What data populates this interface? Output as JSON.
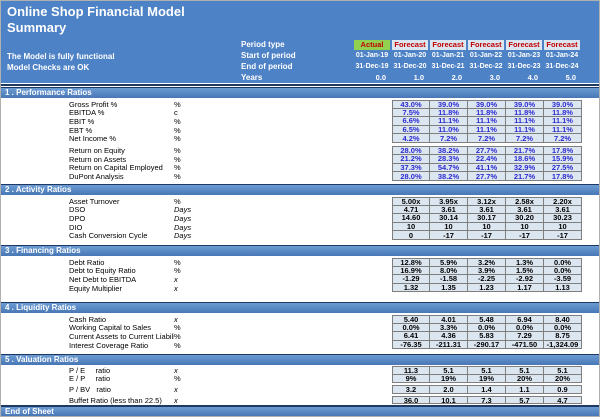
{
  "header": {
    "title": "Online Shop Financial Model",
    "subtitle": "Summary",
    "status_line1": "The Model is fully functional",
    "status_line2": "Model Checks are OK",
    "period_labels": {
      "type": "Period type",
      "start": "Start of period",
      "end": "End of period",
      "years": "Years"
    },
    "columns": [
      {
        "type": "Actual",
        "is_actual": true,
        "start": "01-Jan-19",
        "end": "31-Dec-19",
        "years": "0.0"
      },
      {
        "type": "Forecast",
        "is_actual": false,
        "start": "01-Jan-20",
        "end": "31-Dec-20",
        "years": "1.0"
      },
      {
        "type": "Forecast",
        "is_actual": false,
        "start": "01-Jan-21",
        "end": "31-Dec-21",
        "years": "2.0"
      },
      {
        "type": "Forecast",
        "is_actual": false,
        "start": "01-Jan-22",
        "end": "31-Dec-22",
        "years": "3.0"
      },
      {
        "type": "Forecast",
        "is_actual": false,
        "start": "01-Jan-23",
        "end": "31-Dec-23",
        "years": "4.0"
      },
      {
        "type": "Forecast",
        "is_actual": false,
        "start": "01-Jan-24",
        "end": "31-Dec-24",
        "years": "5.0"
      }
    ]
  },
  "sections": [
    {
      "title": "1 . Performance Ratios",
      "blue": true,
      "groups": [
        {
          "rows": [
            {
              "label": "Gross Profit %",
              "unit": "%",
              "italic": false,
              "values": [
                "43.0%",
                "39.0%",
                "39.0%",
                "39.0%",
                "39.0%"
              ]
            },
            {
              "label": "EBITDA %",
              "unit": "c",
              "italic": false,
              "values": [
                "7.5%",
                "11.8%",
                "11.8%",
                "11.8%",
                "11.8%"
              ]
            },
            {
              "label": "EBIT %",
              "unit": "%",
              "italic": false,
              "values": [
                "6.6%",
                "11.1%",
                "11.1%",
                "11.1%",
                "11.1%"
              ]
            },
            {
              "label": "EBT %",
              "unit": "%",
              "italic": false,
              "values": [
                "6.5%",
                "11.0%",
                "11.1%",
                "11.1%",
                "11.1%"
              ]
            },
            {
              "label": "Net Income %",
              "unit": "%",
              "italic": false,
              "values": [
                "4.2%",
                "7.2%",
                "7.2%",
                "7.2%",
                "7.2%"
              ]
            }
          ]
        },
        {
          "rows": [
            {
              "label": "Return on Equity",
              "unit": "%",
              "italic": false,
              "values": [
                "28.0%",
                "38.2%",
                "27.7%",
                "21.7%",
                "17.8%"
              ]
            },
            {
              "label": "Return on Assets",
              "unit": "%",
              "italic": false,
              "values": [
                "21.2%",
                "28.3%",
                "22.4%",
                "18.6%",
                "15.9%"
              ]
            },
            {
              "label": "Return on Capital Employed",
              "unit": "%",
              "italic": false,
              "values": [
                "37.3%",
                "54.7%",
                "41.1%",
                "32.9%",
                "27.5%"
              ]
            },
            {
              "label": "DuPont Analysis",
              "unit": "%",
              "italic": false,
              "values": [
                "28.0%",
                "38.2%",
                "27.7%",
                "21.7%",
                "17.8%"
              ]
            }
          ]
        }
      ]
    },
    {
      "title": "2 . Activity Ratios",
      "blue": false,
      "groups": [
        {
          "rows": [
            {
              "label": "Asset Turnover",
              "unit": "%",
              "italic": false,
              "values": [
                "5.00x",
                "3.95x",
                "3.12x",
                "2.58x",
                "2.20x"
              ]
            },
            {
              "label": "DSO",
              "unit": "Days",
              "italic": true,
              "values": [
                "4.71",
                "3.61",
                "3.61",
                "3.61",
                "3.61"
              ]
            },
            {
              "label": "DPO",
              "unit": "Days",
              "italic": true,
              "values": [
                "14.60",
                "30.14",
                "30.17",
                "30.20",
                "30.23"
              ]
            },
            {
              "label": "DIO",
              "unit": "Days",
              "italic": true,
              "values": [
                "10",
                "10",
                "10",
                "10",
                "10"
              ]
            },
            {
              "label": "Cash Conversion Cycle",
              "unit": "Days",
              "italic": true,
              "values": [
                "0",
                "-17",
                "-17",
                "-17",
                "-17"
              ]
            }
          ]
        }
      ]
    },
    {
      "title": "3 . Financing Ratios",
      "blue": false,
      "groups": [
        {
          "rows": [
            {
              "label": "Debt Ratio",
              "unit": "%",
              "italic": false,
              "values": [
                "12.8%",
                "5.9%",
                "3.2%",
                "1.3%",
                "0.0%"
              ]
            },
            {
              "label": "Debt to Equity Ratio",
              "unit": "%",
              "italic": false,
              "values": [
                "16.9%",
                "8.0%",
                "3.9%",
                "1.5%",
                "0.0%"
              ]
            },
            {
              "label": "Net Debt to EBITDA",
              "unit": "x",
              "italic": true,
              "values": [
                "-1.29",
                "-1.58",
                "-2.25",
                "-2.92",
                "-3.59"
              ]
            },
            {
              "label": "Equity Multiplier",
              "unit": "x",
              "italic": true,
              "values": [
                "1.32",
                "1.35",
                "1.23",
                "1.17",
                "1.13"
              ]
            }
          ]
        }
      ]
    },
    {
      "title": "4 . Liquidity Ratios",
      "blue": false,
      "groups": [
        {
          "rows": [
            {
              "label": "Cash Ratio",
              "unit": "x",
              "italic": true,
              "values": [
                "5.40",
                "4.01",
                "5.48",
                "6.94",
                "8.40"
              ]
            },
            {
              "label": "Working Capital to Sales",
              "unit": "%",
              "italic": false,
              "values": [
                "0.0%",
                "3.3%",
                "0.0%",
                "0.0%",
                "0.0%"
              ]
            },
            {
              "label": "Current Assets to Current Liabilitie:",
              "unit": "%",
              "italic": false,
              "values": [
                "6.41",
                "4.36",
                "5.83",
                "7.29",
                "8.75"
              ]
            },
            {
              "label": "Interest Coverage Ratio",
              "unit": "%",
              "italic": false,
              "values": [
                "-76.35",
                "-211.31",
                "-290.17",
                "-471.50",
                "-1,324.09"
              ]
            }
          ]
        }
      ]
    },
    {
      "title": "5 . Valuation Ratios",
      "blue": false,
      "groups": [
        {
          "rows": [
            {
              "label": "P / E     ratio",
              "unit": "x",
              "italic": true,
              "values": [
                "11.3",
                "5.1",
                "5.1",
                "5.1",
                "5.1"
              ]
            },
            {
              "label": "E / P     ratio",
              "unit": "%",
              "italic": false,
              "values": [
                "9%",
                "19%",
                "19%",
                "20%",
                "20%"
              ]
            }
          ]
        },
        {
          "rows": [
            {
              "label": "P / BV   ratio",
              "unit": "x",
              "italic": true,
              "values": [
                "3.2",
                "2.0",
                "1.4",
                "1.1",
                "0.9"
              ]
            }
          ]
        },
        {
          "rows": [
            {
              "label": "Buffet Ratio (less than 22.5)",
              "unit": "x",
              "italic": true,
              "values": [
                "36.0",
                "10.1",
                "7.3",
                "5.7",
                "4.7"
              ]
            }
          ]
        }
      ]
    }
  ],
  "footer": {
    "label": "End of Sheet"
  },
  "colors": {
    "header_blue": "#4E82C6",
    "section_bar_blue": "#4F81BD",
    "navy_divider": "#1F3864",
    "actual_green": "#92D050",
    "period_text_red": "#C00000",
    "cell_bg": "#DCE6F1",
    "cell_border": "#7F7F7F",
    "blue_value_text": "#2B2BD0"
  }
}
